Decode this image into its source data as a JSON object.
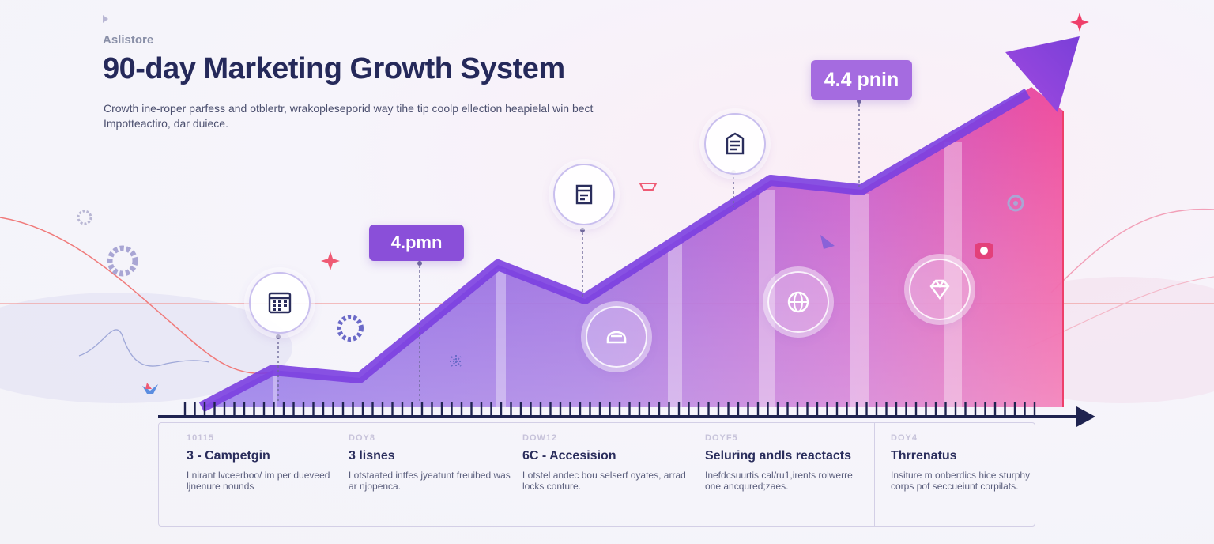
{
  "header": {
    "brand": "Aslistore",
    "title": "90-day Marketing Growth System",
    "subtitle": "Crowth ine-roper parfess and otblertr, wrakopleseporid way tihe tip coolp ellection heapielal win bect Impotteactiro, dar duiece."
  },
  "callouts": [
    {
      "label": "4.pmn"
    },
    {
      "label": "4.4 pnin"
    }
  ],
  "icons": [
    "calendar-icon",
    "database-icon",
    "document-icon",
    "rating-badge-icon",
    "globe-icon",
    "diamond-icon"
  ],
  "stages": [
    {
      "day": "10115",
      "name": "3 - Campetgin",
      "desc": "Lnirant lvceerboo/ im per dueveed ljnenure nounds"
    },
    {
      "day": "DOY8",
      "name": "3 lisnes",
      "desc": "Lotstaated intfes jyeatunt freuibed was ar njopenca."
    },
    {
      "day": "DOW12",
      "name": "6C - Accesision",
      "desc": "Lotstel andec bou selserf oyates, arrad locks conture."
    },
    {
      "day": "DOYF5",
      "name": "Seluring andls reactacts",
      "desc": "Inefdcsuurtis cal/ru1,irents rolwerre one ancqured;zaes."
    },
    {
      "day": "DOY4",
      "name": "Thrrenatus",
      "desc": "Insiture m onberdics hice sturphy corps pof seccueiunt corpilats."
    }
  ],
  "colors": {
    "accent_purple": "#8a4fd9",
    "accent_pink": "#e8409c",
    "title": "#25295a",
    "axis": "#1f2350"
  }
}
